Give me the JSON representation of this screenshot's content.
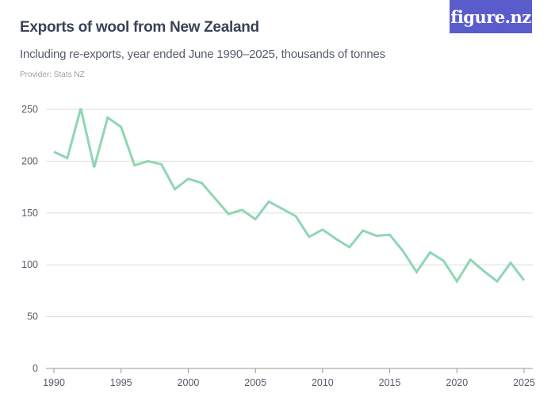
{
  "header": {
    "title": "Exports of wool from New Zealand",
    "subtitle": "Including re-exports, year ended June 1990–2025, thousands of tonnes",
    "provider": "Provider: Stats NZ",
    "logo_text": "figure.nz"
  },
  "colors": {
    "line": "#8fd6b4",
    "logo_bg": "#5a5ccc",
    "grid": "#dddddd"
  },
  "chart_data": {
    "type": "line",
    "title": "Exports of wool from New Zealand",
    "subtitle": "Including re-exports, year ended June 1990–2025, thousands of tonnes",
    "xlabel": "",
    "ylabel": "",
    "xlim": [
      1990,
      2025
    ],
    "ylim": [
      0,
      250
    ],
    "grid": true,
    "x_ticks": [
      "1990",
      "1995",
      "2000",
      "2005",
      "2010",
      "2015",
      "2020",
      "2025"
    ],
    "y_ticks": [
      "0",
      "50",
      "100",
      "150",
      "200",
      "250"
    ],
    "x": [
      1990,
      1991,
      1992,
      1993,
      1994,
      1995,
      1996,
      1997,
      1998,
      1999,
      2000,
      2001,
      2002,
      2003,
      2004,
      2005,
      2006,
      2007,
      2008,
      2009,
      2010,
      2011,
      2012,
      2013,
      2014,
      2015,
      2016,
      2017,
      2018,
      2019,
      2020,
      2021,
      2022,
      2023,
      2024,
      2025
    ],
    "series": [
      {
        "values": [
          209,
          203,
          251,
          194,
          242,
          233,
          196,
          200,
          197,
          173,
          183,
          179,
          164,
          149,
          153,
          144,
          161,
          154,
          147,
          127,
          134,
          125,
          117,
          133,
          128,
          129,
          113,
          93,
          112,
          104,
          84,
          105,
          94,
          84,
          102,
          85
        ]
      }
    ]
  }
}
